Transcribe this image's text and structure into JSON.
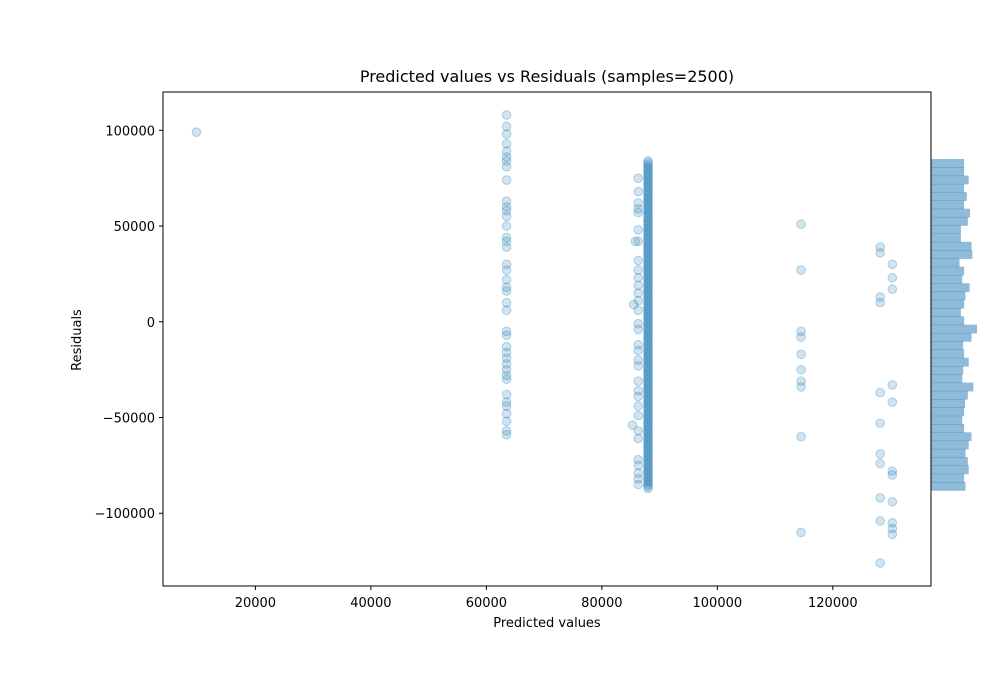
{
  "chart_data": {
    "type": "scatter",
    "title": "Predicted values vs Residuals (samples=2500)",
    "xlabel": "Predicted values",
    "ylabel": "Residuals",
    "xlim": [
      4000,
      137000
    ],
    "ylim": [
      -138000,
      120000
    ],
    "x_ticks": [
      20000,
      40000,
      60000,
      80000,
      100000,
      120000
    ],
    "y_ticks": [
      100000,
      50000,
      0,
      -50000,
      -100000
    ],
    "grid": false,
    "marker_color": "#1f77b4",
    "marker_alpha": 0.2,
    "histogram_color": "#1f77b4",
    "histogram_alpha": 0.5,
    "points": [
      {
        "x": 9800,
        "y": 99000
      },
      {
        "x": 63500,
        "y": 108000
      },
      {
        "x": 63500,
        "y": 102000
      },
      {
        "x": 63500,
        "y": 98000
      },
      {
        "x": 63500,
        "y": 93000
      },
      {
        "x": 63500,
        "y": 89000
      },
      {
        "x": 63500,
        "y": 86000
      },
      {
        "x": 63500,
        "y": 84000
      },
      {
        "x": 63500,
        "y": 81000
      },
      {
        "x": 63500,
        "y": 74000
      },
      {
        "x": 63500,
        "y": 63000
      },
      {
        "x": 63500,
        "y": 60000
      },
      {
        "x": 63500,
        "y": 58000
      },
      {
        "x": 63500,
        "y": 55000
      },
      {
        "x": 63500,
        "y": 50000
      },
      {
        "x": 63500,
        "y": 44000
      },
      {
        "x": 63500,
        "y": 42000
      },
      {
        "x": 63500,
        "y": 39000
      },
      {
        "x": 63500,
        "y": 30000
      },
      {
        "x": 63500,
        "y": 27000
      },
      {
        "x": 63500,
        "y": 22000
      },
      {
        "x": 63500,
        "y": 18000
      },
      {
        "x": 63500,
        "y": 16000
      },
      {
        "x": 63500,
        "y": 10000
      },
      {
        "x": 63500,
        "y": 6000
      },
      {
        "x": 63500,
        "y": -5000
      },
      {
        "x": 63500,
        "y": -7000
      },
      {
        "x": 63500,
        "y": -13000
      },
      {
        "x": 63500,
        "y": -16000
      },
      {
        "x": 63500,
        "y": -19000
      },
      {
        "x": 63500,
        "y": -22000
      },
      {
        "x": 63500,
        "y": -25000
      },
      {
        "x": 63500,
        "y": -28000
      },
      {
        "x": 63500,
        "y": -30000
      },
      {
        "x": 63500,
        "y": -38000
      },
      {
        "x": 63500,
        "y": -42000
      },
      {
        "x": 63500,
        "y": -44000
      },
      {
        "x": 63500,
        "y": -48000
      },
      {
        "x": 63500,
        "y": -52000
      },
      {
        "x": 63500,
        "y": -57000
      },
      {
        "x": 63500,
        "y": -59000
      },
      {
        "x": 85800,
        "y": 42000
      },
      {
        "x": 85500,
        "y": 9000
      },
      {
        "x": 85300,
        "y": -54000
      },
      {
        "x": 86300,
        "y": 75000
      },
      {
        "x": 86300,
        "y": 68000
      },
      {
        "x": 86300,
        "y": 62000
      },
      {
        "x": 86300,
        "y": 59000
      },
      {
        "x": 86300,
        "y": 57000
      },
      {
        "x": 86300,
        "y": 48000
      },
      {
        "x": 86300,
        "y": 42000
      },
      {
        "x": 86300,
        "y": 32000
      },
      {
        "x": 86300,
        "y": 27000
      },
      {
        "x": 86300,
        "y": 23000
      },
      {
        "x": 86300,
        "y": 19000
      },
      {
        "x": 86300,
        "y": 15000
      },
      {
        "x": 86300,
        "y": 11000
      },
      {
        "x": 86300,
        "y": 6000
      },
      {
        "x": 86300,
        "y": -1000
      },
      {
        "x": 86300,
        "y": -4000
      },
      {
        "x": 86300,
        "y": -12000
      },
      {
        "x": 86300,
        "y": -15000
      },
      {
        "x": 86300,
        "y": -20000
      },
      {
        "x": 86300,
        "y": -23000
      },
      {
        "x": 86300,
        "y": -31000
      },
      {
        "x": 86300,
        "y": -36000
      },
      {
        "x": 86300,
        "y": -39000
      },
      {
        "x": 86300,
        "y": -44000
      },
      {
        "x": 86300,
        "y": -49000
      },
      {
        "x": 86300,
        "y": -57000
      },
      {
        "x": 86300,
        "y": -61000
      },
      {
        "x": 86300,
        "y": -72000
      },
      {
        "x": 86300,
        "y": -75000
      },
      {
        "x": 86300,
        "y": -79000
      },
      {
        "x": 86300,
        "y": -82000
      },
      {
        "x": 86300,
        "y": -85000
      },
      {
        "x": 114500,
        "y": 51000
      },
      {
        "x": 114500,
        "y": 27000
      },
      {
        "x": 114500,
        "y": -5000
      },
      {
        "x": 114500,
        "y": -8000
      },
      {
        "x": 114500,
        "y": -17000
      },
      {
        "x": 114500,
        "y": -25000
      },
      {
        "x": 114500,
        "y": -31000
      },
      {
        "x": 114500,
        "y": -34000
      },
      {
        "x": 114500,
        "y": -60000
      },
      {
        "x": 114500,
        "y": -110000
      },
      {
        "x": 128200,
        "y": 39000
      },
      {
        "x": 128200,
        "y": 36000
      },
      {
        "x": 128200,
        "y": 13000
      },
      {
        "x": 128200,
        "y": 10000
      },
      {
        "x": 128200,
        "y": -37000
      },
      {
        "x": 128200,
        "y": -53000
      },
      {
        "x": 128200,
        "y": -69000
      },
      {
        "x": 128200,
        "y": -74000
      },
      {
        "x": 128200,
        "y": -92000
      },
      {
        "x": 128200,
        "y": -104000
      },
      {
        "x": 128200,
        "y": -126000
      },
      {
        "x": 130300,
        "y": 30000
      },
      {
        "x": 130300,
        "y": 23000
      },
      {
        "x": 130300,
        "y": 17000
      },
      {
        "x": 130300,
        "y": -33000
      },
      {
        "x": 130300,
        "y": -42000
      },
      {
        "x": 130300,
        "y": -78000
      },
      {
        "x": 130300,
        "y": -80000
      },
      {
        "x": 130300,
        "y": -94000
      },
      {
        "x": 130300,
        "y": -105000
      },
      {
        "x": 130300,
        "y": -108000
      },
      {
        "x": 130300,
        "y": -111000
      }
    ],
    "dense_column": {
      "x": 88000,
      "y_min": -87000,
      "y_max": 84000
    },
    "histogram": {
      "orientation": "horizontal",
      "y_range": [
        -88000,
        85000
      ],
      "bin_count": 40,
      "relative_heights": [
        0.72,
        0.72,
        0.82,
        0.72,
        0.78,
        0.72,
        0.85,
        0.8,
        0.65,
        0.65,
        0.88,
        0.9,
        0.62,
        0.72,
        0.68,
        0.84,
        0.75,
        0.72,
        0.65,
        0.72,
        1.0,
        0.88,
        0.7,
        0.72,
        0.82,
        0.7,
        0.68,
        0.92,
        0.8,
        0.74,
        0.72,
        0.68,
        0.72,
        0.88,
        0.82,
        0.75,
        0.8,
        0.82,
        0.72,
        0.75
      ]
    }
  }
}
